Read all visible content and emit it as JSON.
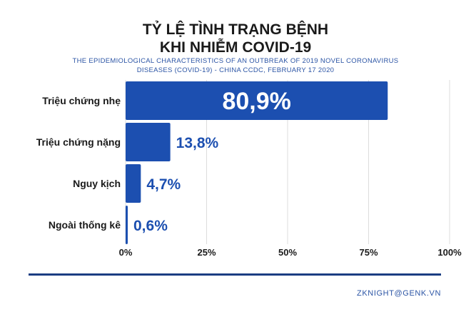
{
  "chart_data": {
    "type": "bar",
    "orientation": "horizontal",
    "title_lines": [
      "TỶ LỆ TÌNH TRẠNG BỆNH",
      "KHI NHIỄM COVID-19"
    ],
    "subtitle_lines": [
      "THE EPIDEMIOLOGICAL CHARACTERISTICS OF AN OUTBREAK OF 2019 NOVEL CORONAVIRUS",
      "DISEASES (COVID-19) - CHINA CCDC, FEBRUARY 17 2020"
    ],
    "categories": [
      "Triệu chứng nhẹ",
      "Triệu chứng nặng",
      "Nguy kịch",
      "Ngoài thống kê"
    ],
    "values": [
      80.9,
      13.8,
      4.7,
      0.6
    ],
    "value_labels": [
      "80,9%",
      "13,8%",
      "4,7%",
      "0,6%"
    ],
    "xlim": [
      0,
      100
    ],
    "xticks": [
      0,
      25,
      50,
      75,
      100
    ],
    "xtick_labels": [
      "0%",
      "25%",
      "50%",
      "75%",
      "100%"
    ],
    "grid": true,
    "bar_color": "#1c4fb0",
    "label_color": "#1c4fb0",
    "inside_label_color": "#ffffff"
  },
  "footer": {
    "credit": "ZKNIGHT@GENK.VN"
  }
}
